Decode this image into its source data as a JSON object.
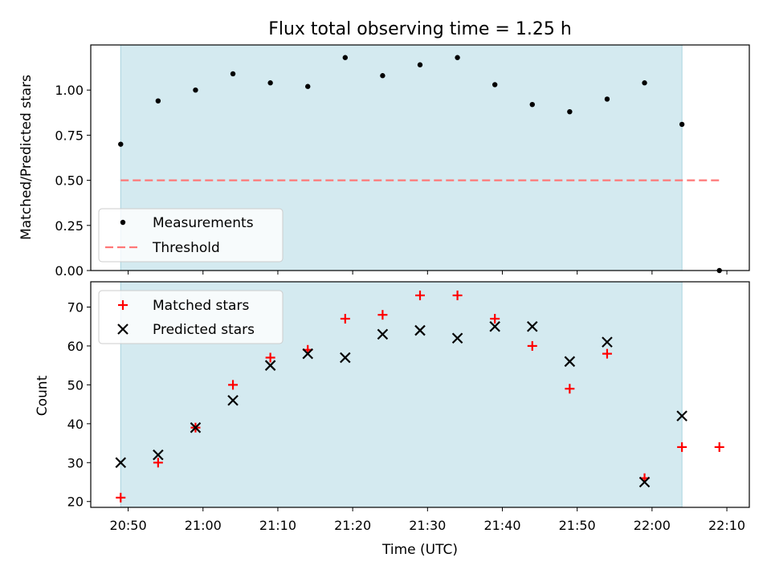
{
  "chart_data": [
    {
      "type": "scatter",
      "title": "Flux total observing time = 1.25 h",
      "xlabel": "",
      "ylabel": "Matched/Predicted stars",
      "x_time_range": [
        "20:45",
        "22:13"
      ],
      "ylim": [
        0.0,
        1.25
      ],
      "yticks": [
        "0.00",
        "0.25",
        "0.50",
        "0.75",
        "1.00"
      ],
      "shaded_span": [
        "20:49",
        "22:04"
      ],
      "legend_position": "lower-left",
      "series": [
        {
          "name": "Measurements",
          "marker": "dot",
          "color": "#000000",
          "x": [
            "20:49",
            "20:54",
            "20:59",
            "21:04",
            "21:09",
            "21:14",
            "21:19",
            "21:24",
            "21:29",
            "21:34",
            "21:39",
            "21:44",
            "21:49",
            "21:54",
            "21:59",
            "22:04",
            "22:09"
          ],
          "y": [
            0.7,
            0.94,
            1.0,
            1.09,
            1.04,
            1.02,
            1.18,
            1.08,
            1.14,
            1.18,
            1.03,
            0.92,
            0.88,
            0.95,
            1.04,
            0.81,
            0.0
          ]
        },
        {
          "name": "Threshold",
          "style": "dashed",
          "color": "#ff7777",
          "x": [
            "20:49",
            "22:09"
          ],
          "y": [
            0.5,
            0.5
          ]
        }
      ]
    },
    {
      "type": "scatter",
      "title": "",
      "xlabel": "Time (UTC)",
      "ylabel": "Count",
      "x_time_range": [
        "20:45",
        "22:13"
      ],
      "xticks": [
        "20:50",
        "21:00",
        "21:10",
        "21:20",
        "21:30",
        "21:40",
        "21:50",
        "22:00",
        "22:10"
      ],
      "ylim": [
        18.5,
        76.5
      ],
      "yticks": [
        "20",
        "30",
        "40",
        "50",
        "60",
        "70"
      ],
      "shaded_span": [
        "20:49",
        "22:04"
      ],
      "legend_position": "upper-left",
      "series": [
        {
          "name": "Matched stars",
          "marker": "plus",
          "color": "#ff0000",
          "x": [
            "20:49",
            "20:54",
            "20:59",
            "21:04",
            "21:09",
            "21:14",
            "21:19",
            "21:24",
            "21:29",
            "21:34",
            "21:39",
            "21:44",
            "21:49",
            "21:54",
            "21:59",
            "22:04",
            "22:09"
          ],
          "y": [
            21,
            30,
            39,
            50,
            57,
            59,
            67,
            68,
            73,
            73,
            67,
            60,
            49,
            58,
            26,
            34,
            34
          ]
        },
        {
          "name": "Predicted stars",
          "marker": "x",
          "color": "#000000",
          "x": [
            "20:49",
            "20:54",
            "20:59",
            "21:04",
            "21:09",
            "21:14",
            "21:19",
            "21:24",
            "21:29",
            "21:34",
            "21:39",
            "21:44",
            "21:49",
            "21:54",
            "21:59",
            "22:04"
          ],
          "y": [
            30,
            32,
            39,
            46,
            55,
            58,
            57,
            63,
            64,
            62,
            65,
            65,
            56,
            61,
            25,
            42
          ]
        }
      ]
    }
  ],
  "colors": {
    "span_fill": "#d4eaf0",
    "span_edge": "#a9d3de",
    "threshold": "#ff7777",
    "matched": "#ff0000",
    "predicted": "#000000",
    "measurement": "#000000"
  }
}
